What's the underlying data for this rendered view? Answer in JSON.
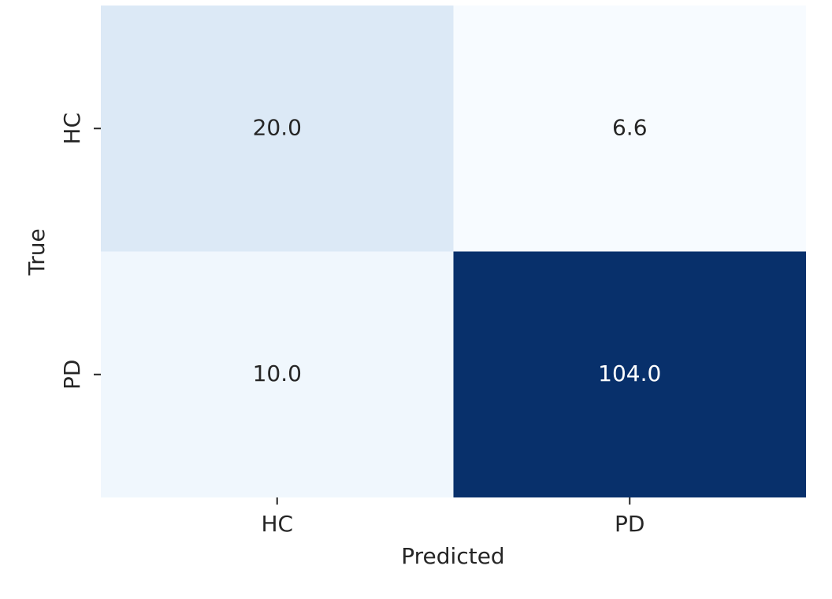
{
  "chart_data": {
    "type": "heatmap",
    "x_label": "Predicted",
    "y_label": "True",
    "x_categories": [
      "HC",
      "PD"
    ],
    "y_categories": [
      "HC",
      "PD"
    ],
    "values": [
      [
        20.0,
        6.6
      ],
      [
        10.0,
        104.0
      ]
    ],
    "value_labels": [
      [
        "20.0",
        "6.6"
      ],
      [
        "10.0",
        "104.0"
      ]
    ],
    "colormap": [
      "#f7fbff",
      "#deebf7",
      "#c6dbef",
      "#9ecae1",
      "#6baed6",
      "#4292c6",
      "#2171b5",
      "#08519c",
      "#08306b"
    ]
  }
}
